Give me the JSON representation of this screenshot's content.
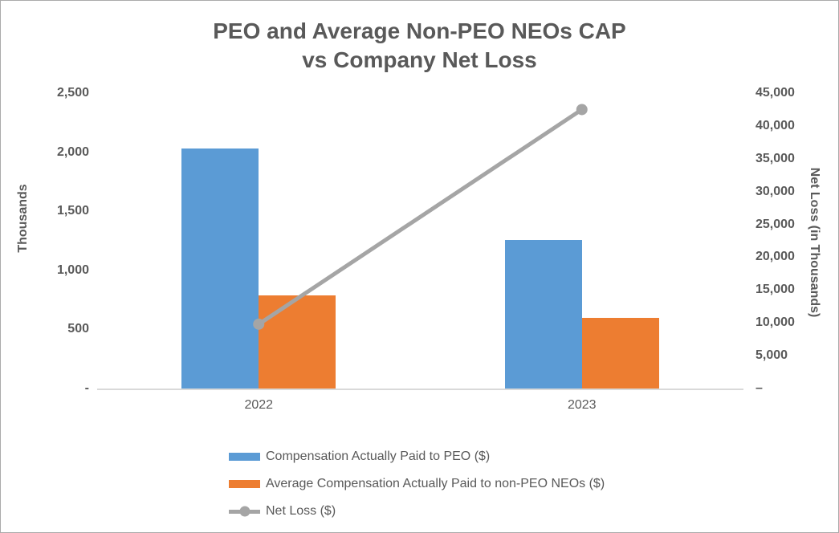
{
  "chart_data": {
    "type": "bar",
    "subtype": "bar+line combo, dual axis",
    "title": "PEO and Average Non-PEO NEOs CAP vs Company Net Loss",
    "title_lines": [
      "PEO and Average Non-PEO NEOs CAP",
      "vs Company Net Loss"
    ],
    "categories": [
      "2022",
      "2023"
    ],
    "series": [
      {
        "name": "Compensation Actually Paid to PEO ($)",
        "type": "bar",
        "axis": "left",
        "color": "#5B9BD5",
        "values": [
          2030,
          1260
        ]
      },
      {
        "name": "Average Compensation Actually Paid to non-PEO NEOs ($)",
        "type": "bar",
        "axis": "left",
        "color": "#ED7D31",
        "values": [
          790,
          600
        ]
      },
      {
        "name": "Net Loss ($)",
        "type": "line",
        "axis": "right",
        "color": "#A5A5A5",
        "values": [
          9800,
          42500
        ]
      }
    ],
    "left_axis": {
      "title": "Thousands",
      "min": 0,
      "max": 2500,
      "step": 500,
      "tick_labels": [
        "-",
        "500",
        "1,000",
        "1,500",
        "2,000",
        "2,500"
      ]
    },
    "right_axis": {
      "title": "Net Loss (in Thousands)",
      "min": 0,
      "max": 45000,
      "step": 5000,
      "tick_labels": [
        "–",
        "5,000",
        "10,000",
        "15,000",
        "20,000",
        "25,000",
        "30,000",
        "35,000",
        "40,000",
        "45,000"
      ]
    },
    "grid": false,
    "legend_position": "bottom"
  },
  "colors": {
    "text": "#595959",
    "axis_line": "#D9D9D9",
    "border": "#ABABAB",
    "background": "#FFFFFF"
  }
}
